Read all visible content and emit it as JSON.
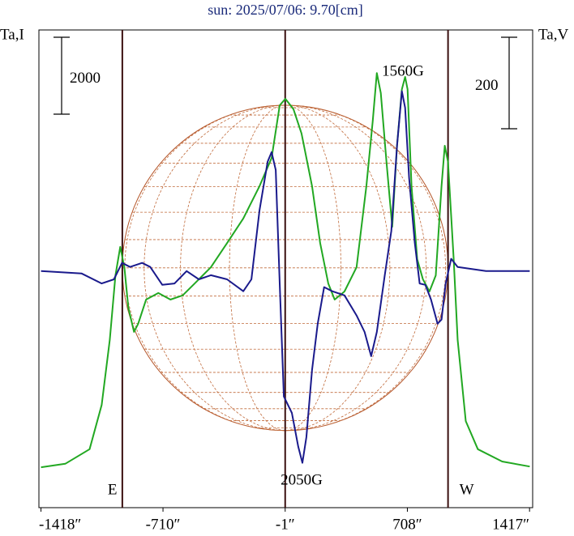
{
  "chart_data": {
    "type": "line",
    "title": "sun: 2025/07/06: 9.70[cm]",
    "y_label": "Ta,I",
    "y2_label": "Ta,V",
    "xlim": [
      -1430,
      1435
    ],
    "xticks": [
      {
        "value": -1418,
        "label": "-1418″"
      },
      {
        "value": -710,
        "label": "-710″"
      },
      {
        "value": -1,
        "label": "-1″"
      },
      {
        "value": 708,
        "label": "708″"
      },
      {
        "value": 1417,
        "label": "1417″"
      }
    ],
    "ylim": [
      0,
      12420
    ],
    "y2lim": [
      -517,
      527
    ],
    "disk": {
      "center": -1,
      "radius": 945
    },
    "limb_labels": [
      "E",
      "W"
    ],
    "annotations": [
      "2050G",
      "1560G"
    ],
    "scale_bars": [
      {
        "value": 2000,
        "axis": "y"
      },
      {
        "value": 200,
        "axis": "y2"
      }
    ],
    "series": [
      {
        "name": "I",
        "color": "#22a822",
        "axis": "y",
        "x": [
          -1418,
          -1277,
          -1136,
          -1066,
          -1019,
          -986,
          -958,
          -934,
          -911,
          -878,
          -854,
          -808,
          -737,
          -667,
          -596,
          -526,
          -432,
          -338,
          -244,
          -150,
          -80,
          -33,
          0,
          47,
          94,
          155,
          202,
          249,
          286,
          343,
          413,
          470,
          507,
          531,
          554,
          587,
          620,
          648,
          676,
          695,
          709,
          732,
          765,
          798,
          836,
          873,
          906,
          925,
          944,
          977,
          1000,
          1047,
          1117,
          1258,
          1418
        ],
        "values": [
          1050,
          1140,
          1520,
          2670,
          4360,
          6040,
          6780,
          6250,
          5200,
          4570,
          4780,
          5410,
          5580,
          5410,
          5520,
          5830,
          6250,
          6880,
          7520,
          8360,
          9090,
          10460,
          10630,
          10360,
          9730,
          8360,
          6880,
          5830,
          5410,
          5620,
          6250,
          8360,
          10040,
          11300,
          10780,
          8990,
          7300,
          9410,
          10880,
          11200,
          10880,
          8360,
          6460,
          5940,
          5620,
          6040,
          8360,
          9410,
          8990,
          6460,
          4360,
          2250,
          1520,
          1200,
          1070
        ]
      },
      {
        "name": "V",
        "color": "#1a1a8c",
        "axis": "y2",
        "x": [
          -1418,
          -1183,
          -1066,
          -995,
          -948,
          -901,
          -831,
          -784,
          -714,
          -643,
          -573,
          -502,
          -432,
          -338,
          -244,
          -197,
          -150,
          -103,
          -80,
          -56,
          -33,
          -9,
          38,
          75,
          99,
          122,
          155,
          188,
          225,
          272,
          343,
          413,
          460,
          498,
          531,
          577,
          615,
          648,
          676,
          695,
          718,
          751,
          779,
          812,
          845,
          883,
          906,
          930,
          962,
          1000,
          1164,
          1418
        ],
        "values": [
          0,
          -5,
          -27,
          -18,
          18,
          9,
          18,
          9,
          -30,
          -27,
          0,
          -18,
          -9,
          -18,
          -44,
          -18,
          133,
          239,
          260,
          221,
          -27,
          -274,
          -310,
          -384,
          -419,
          -363,
          -216,
          -115,
          -35,
          -44,
          -53,
          -97,
          -133,
          -186,
          -133,
          -9,
          88,
          274,
          393,
          357,
          204,
          62,
          -27,
          -30,
          -62,
          -115,
          -106,
          -27,
          27,
          9,
          0,
          0
        ]
      }
    ]
  }
}
